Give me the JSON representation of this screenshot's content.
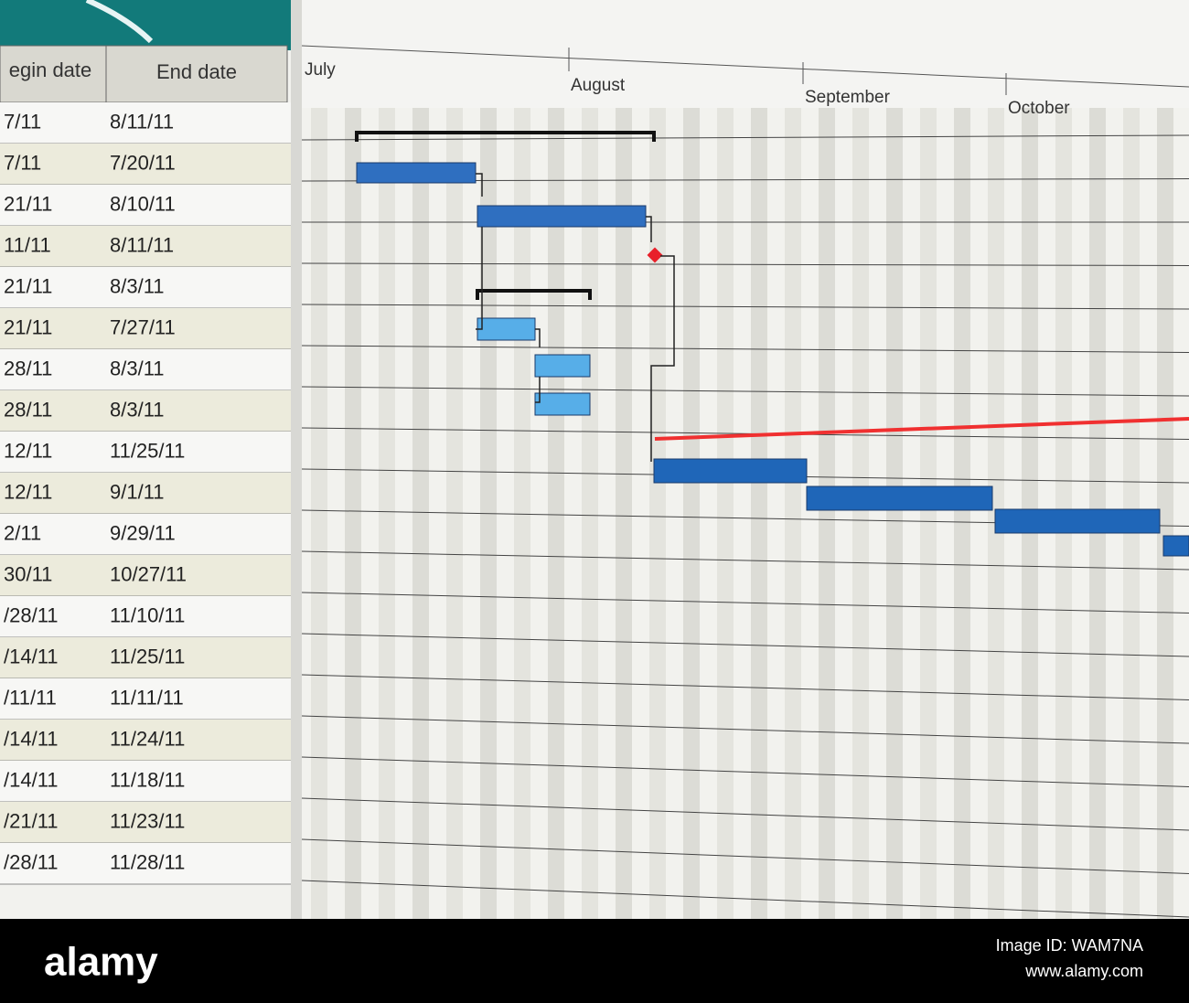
{
  "table": {
    "columns": [
      "egin date",
      "End date"
    ],
    "rows": [
      [
        "7/11",
        "8/11/11"
      ],
      [
        "7/11",
        "7/20/11"
      ],
      [
        "21/11",
        "8/10/11"
      ],
      [
        "11/11",
        "8/11/11"
      ],
      [
        "21/11",
        "8/3/11"
      ],
      [
        "21/11",
        "7/27/11"
      ],
      [
        "28/11",
        "8/3/11"
      ],
      [
        "28/11",
        "8/3/11"
      ],
      [
        "12/11",
        "11/25/11"
      ],
      [
        "12/11",
        "9/1/11"
      ],
      [
        "2/11",
        "9/29/11"
      ],
      [
        "30/11",
        "10/27/11"
      ],
      [
        "/28/11",
        "11/10/11"
      ],
      [
        "/14/11",
        "11/25/11"
      ],
      [
        "/11/11",
        "11/11/11"
      ],
      [
        "/14/11",
        "11/24/11"
      ],
      [
        "/14/11",
        "11/18/11"
      ],
      [
        "/21/11",
        "11/23/11"
      ],
      [
        "/28/11",
        "11/28/11"
      ]
    ]
  },
  "timeline": {
    "months": [
      "July",
      "August",
      "September",
      "October"
    ]
  },
  "footer": {
    "brand": "alamy",
    "image_id": "Image ID: WAM7NA",
    "site": "www.alamy.com"
  }
}
